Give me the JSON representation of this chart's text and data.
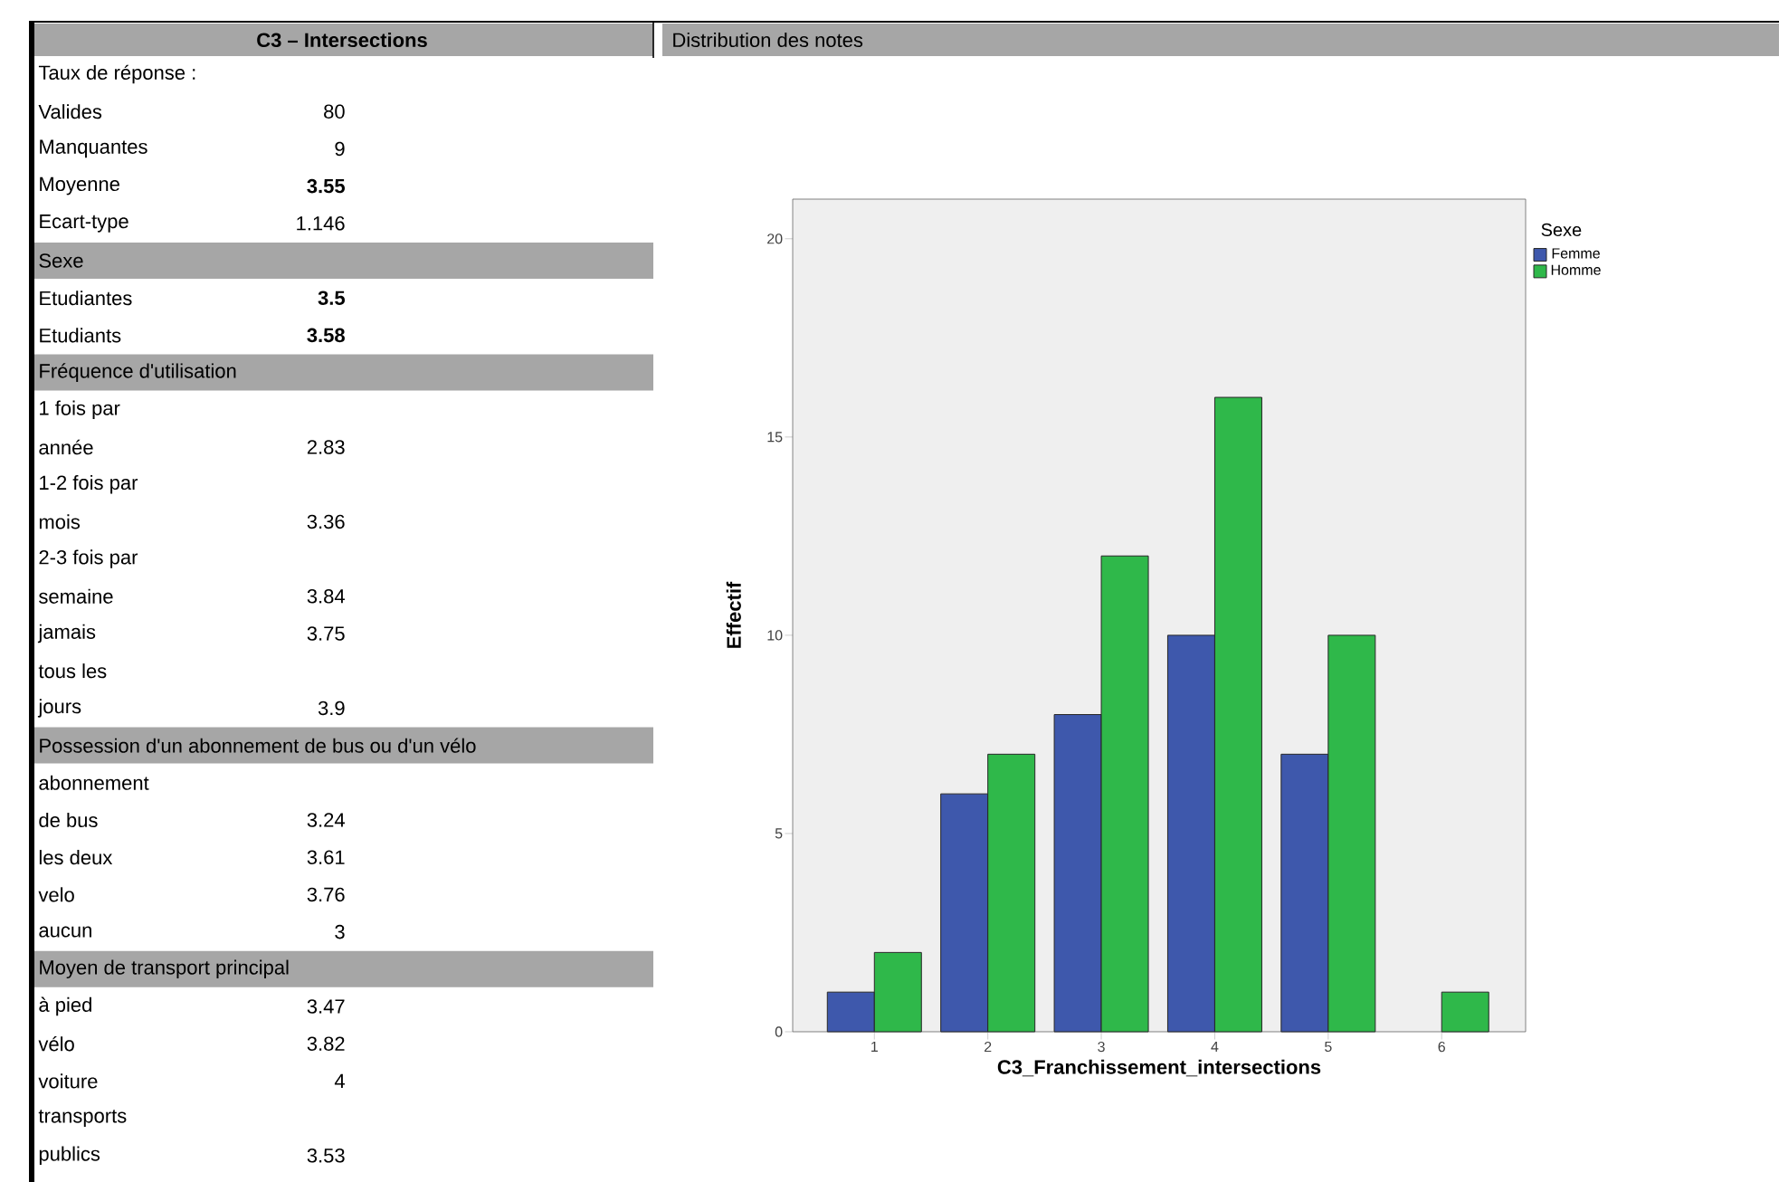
{
  "chart_data": [
    {
      "type": "other",
      "title": "C3 – Intersections",
      "annotations": [
        "Taux de réponse :"
      ],
      "categories": [
        "Valides",
        "Manquantes",
        "Moyenne",
        "Ecart-type",
        "Sexe",
        "Etudiantes",
        "Etudiants",
        "Fréquence d'utilisation",
        "1 fois par",
        "année",
        "1-2 fois par",
        "mois",
        "2-3 fois par",
        "semaine",
        "jamais",
        "tous les",
        "jours",
        "Possession d'un abonnement de bus ou d'un vélo",
        "abonnement",
        "de bus",
        "les deux",
        "velo",
        "aucun",
        "Moyen de transport principal",
        "à pied",
        "vélo",
        "voiture",
        "transports",
        "publics"
      ],
      "value_labels": [
        "80",
        "9",
        "3.55",
        "1.146",
        null,
        "3.5",
        "3.58",
        null,
        null,
        "2.83",
        null,
        "3.36",
        null,
        "3.84",
        "3.75",
        null,
        "3.9",
        null,
        null,
        "3.24",
        "3.61",
        "3.76",
        "3",
        null,
        "3.47",
        "3.82",
        "4",
        null,
        "3.53"
      ]
    },
    {
      "type": "bar",
      "title": "Distribution des notes",
      "xlabel": "C3_Franchissement_intersections",
      "ylabel": "Effectif",
      "legend_title": "Sexe",
      "legend": "top right",
      "categories": [
        "1",
        "2",
        "3",
        "4",
        "5",
        "6"
      ],
      "series": [
        {
          "name": "Femme",
          "color": "#3e58ac",
          "values": [
            1,
            6,
            8,
            10,
            7,
            null
          ]
        },
        {
          "name": "Homme",
          "color": "#2fb84a",
          "values": [
            2,
            7,
            12,
            16,
            10,
            1
          ]
        }
      ],
      "ylim": [
        0,
        21
      ],
      "yticks": [
        0,
        5,
        10,
        15,
        20
      ]
    }
  ]
}
